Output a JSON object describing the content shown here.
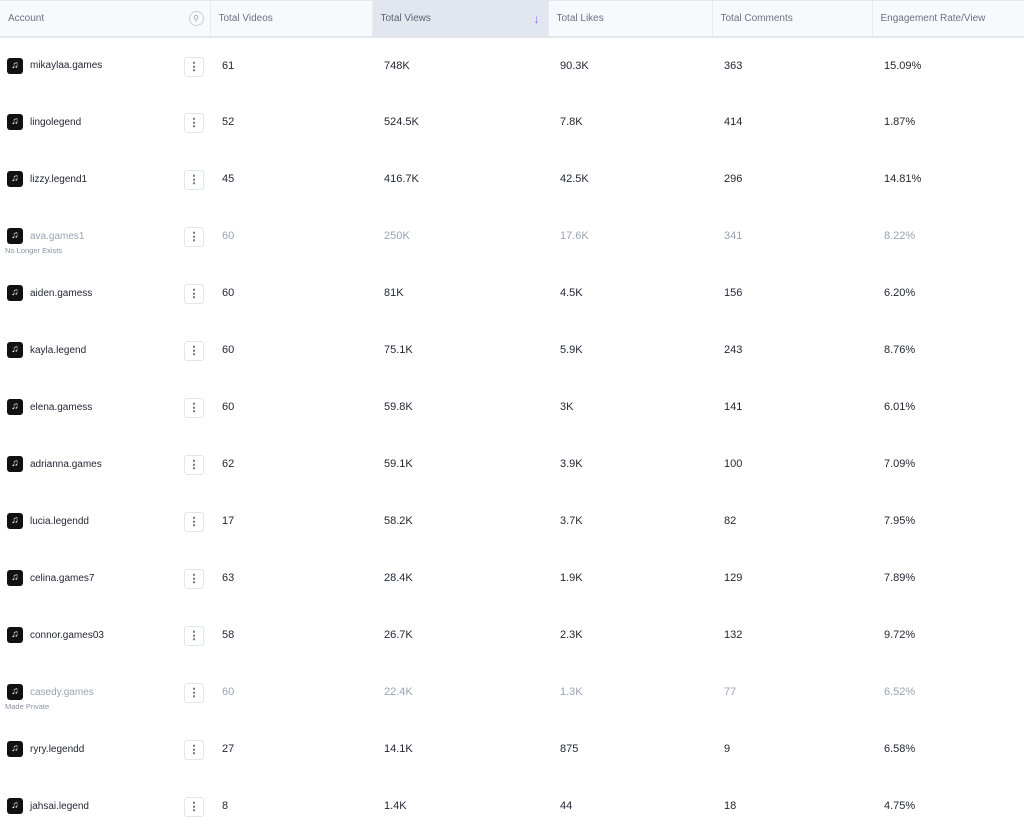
{
  "columns": [
    "Account",
    "Total Videos",
    "Total Views",
    "Total Likes",
    "Total Comments",
    "Engagement Rate/View"
  ],
  "sorted_column": "Total Views",
  "sort_direction": "descending",
  "accent_color": "#8b5cf6",
  "rows": [
    {
      "account": "mikaylaa.games",
      "status": "",
      "videos": "61",
      "views": "748K",
      "likes": "90.3K",
      "comments": "363",
      "engagement": "15.09%"
    },
    {
      "account": "lingolegend",
      "status": "",
      "videos": "52",
      "views": "524.5K",
      "likes": "7.8K",
      "comments": "414",
      "engagement": "1.87%"
    },
    {
      "account": "lizzy.legend1",
      "status": "",
      "videos": "45",
      "views": "416.7K",
      "likes": "42.5K",
      "comments": "296",
      "engagement": "14.81%"
    },
    {
      "account": "ava.games1",
      "status": "No Longer Exists",
      "videos": "60",
      "views": "250K",
      "likes": "17.6K",
      "comments": "341",
      "engagement": "8.22%"
    },
    {
      "account": "aiden.gamess",
      "status": "",
      "videos": "60",
      "views": "81K",
      "likes": "4.5K",
      "comments": "156",
      "engagement": "6.20%"
    },
    {
      "account": "kayla.legend",
      "status": "",
      "videos": "60",
      "views": "75.1K",
      "likes": "5.9K",
      "comments": "243",
      "engagement": "8.76%"
    },
    {
      "account": "elena.gamess",
      "status": "",
      "videos": "60",
      "views": "59.8K",
      "likes": "3K",
      "comments": "141",
      "engagement": "6.01%"
    },
    {
      "account": "adrianna.games",
      "status": "",
      "videos": "62",
      "views": "59.1K",
      "likes": "3.9K",
      "comments": "100",
      "engagement": "7.09%"
    },
    {
      "account": "lucia.legendd",
      "status": "",
      "videos": "17",
      "views": "58.2K",
      "likes": "3.7K",
      "comments": "82",
      "engagement": "7.95%"
    },
    {
      "account": "celina.games7",
      "status": "",
      "videos": "63",
      "views": "28.4K",
      "likes": "1.9K",
      "comments": "129",
      "engagement": "7.89%"
    },
    {
      "account": "connor.games03",
      "status": "",
      "videos": "58",
      "views": "26.7K",
      "likes": "2.3K",
      "comments": "132",
      "engagement": "9.72%"
    },
    {
      "account": "casedy.games",
      "status": "Made Private",
      "videos": "60",
      "views": "22.4K",
      "likes": "1.3K",
      "comments": "77",
      "engagement": "6.52%"
    },
    {
      "account": "ryry.legendd",
      "status": "",
      "videos": "27",
      "views": "14.1K",
      "likes": "875",
      "comments": "9",
      "engagement": "6.58%"
    },
    {
      "account": "jahsai.legend",
      "status": "",
      "videos": "8",
      "views": "1.4K",
      "likes": "44",
      "comments": "18",
      "engagement": "4.75%"
    }
  ]
}
